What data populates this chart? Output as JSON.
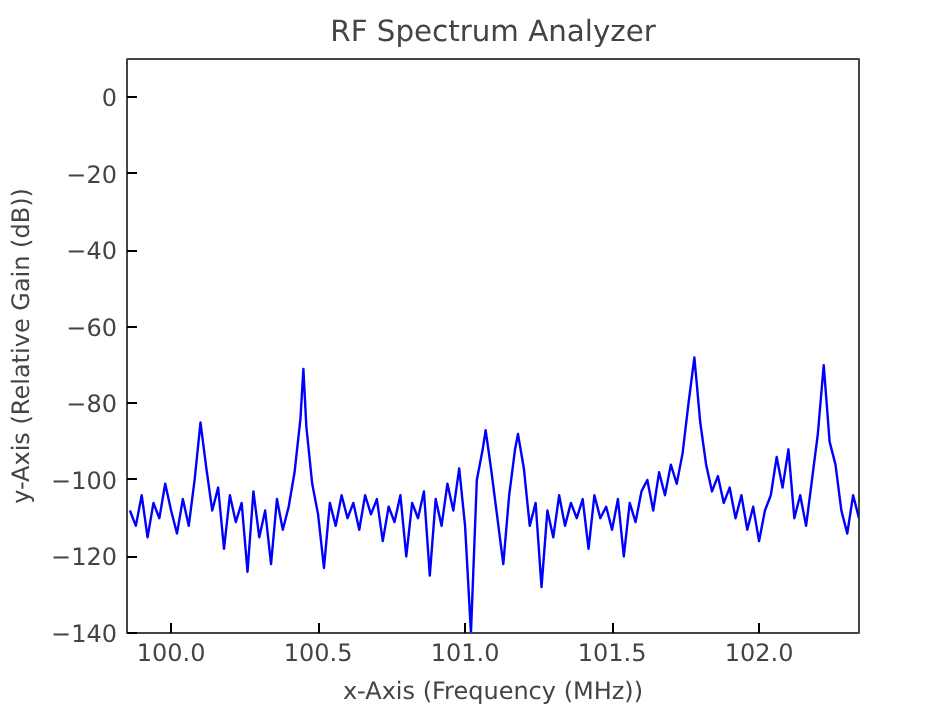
{
  "chart_data": {
    "type": "line",
    "title": "RF Spectrum Analyzer",
    "xlabel": "x-Axis (Frequency (MHz))",
    "ylabel": "y-Axis (Relative Gain (dB))",
    "xlim": [
      99.85,
      102.34
    ],
    "ylim": [
      -140,
      10
    ],
    "xticks": [
      {
        "value": 100.0,
        "label": "100.0"
      },
      {
        "value": 100.5,
        "label": "100.5"
      },
      {
        "value": 101.0,
        "label": "101.0"
      },
      {
        "value": 101.5,
        "label": "101.5"
      },
      {
        "value": 102.0,
        "label": "102.0"
      }
    ],
    "yticks": [
      {
        "value": -140,
        "label": "−140"
      },
      {
        "value": -120,
        "label": "−120"
      },
      {
        "value": -100,
        "label": "−100"
      },
      {
        "value": -80,
        "label": "−80"
      },
      {
        "value": -60,
        "label": "−60"
      },
      {
        "value": -40,
        "label": "−40"
      },
      {
        "value": -20,
        "label": "−20"
      },
      0
    ],
    "grid": false,
    "line_style": "solid",
    "series": [
      {
        "color": "#0000ff",
        "x": [
          99.86,
          99.88,
          99.9,
          99.92,
          99.94,
          99.96,
          99.98,
          100.0,
          100.02,
          100.04,
          100.06,
          100.08,
          100.1,
          100.12,
          100.14,
          100.16,
          100.18,
          100.2,
          100.22,
          100.24,
          100.26,
          100.28,
          100.3,
          100.32,
          100.34,
          100.36,
          100.38,
          100.4,
          100.42,
          100.44,
          100.45,
          100.46,
          100.48,
          100.5,
          100.52,
          100.54,
          100.56,
          100.58,
          100.6,
          100.62,
          100.64,
          100.66,
          100.68,
          100.7,
          100.72,
          100.74,
          100.76,
          100.78,
          100.8,
          100.82,
          100.84,
          100.86,
          100.88,
          100.9,
          100.92,
          100.94,
          100.96,
          100.98,
          101.0,
          101.02,
          101.04,
          101.06,
          101.07,
          101.09,
          101.11,
          101.13,
          101.15,
          101.17,
          101.18,
          101.2,
          101.22,
          101.24,
          101.26,
          101.28,
          101.3,
          101.32,
          101.34,
          101.36,
          101.38,
          101.4,
          101.42,
          101.44,
          101.46,
          101.48,
          101.5,
          101.52,
          101.54,
          101.56,
          101.58,
          101.6,
          101.62,
          101.64,
          101.66,
          101.68,
          101.7,
          101.72,
          101.74,
          101.76,
          101.78,
          101.8,
          101.82,
          101.84,
          101.86,
          101.88,
          101.9,
          101.92,
          101.94,
          101.96,
          101.98,
          102.0,
          102.02,
          102.04,
          102.06,
          102.08,
          102.1,
          102.12,
          102.14,
          102.16,
          102.18,
          102.2,
          102.22,
          102.24,
          102.26,
          102.28,
          102.3,
          102.32,
          102.34
        ],
        "values": [
          -108,
          -112,
          -104,
          -115,
          -106,
          -110,
          -101,
          -108,
          -114,
          -105,
          -112,
          -100,
          -85,
          -97,
          -108,
          -102,
          -118,
          -104,
          -111,
          -106,
          -124,
          -103,
          -115,
          -108,
          -122,
          -105,
          -113,
          -107,
          -98,
          -84,
          -71,
          -86,
          -101,
          -109,
          -123,
          -106,
          -112,
          -104,
          -110,
          -106,
          -113,
          -104,
          -109,
          -105,
          -116,
          -107,
          -111,
          -104,
          -120,
          -106,
          -110,
          -103,
          -125,
          -105,
          -112,
          -101,
          -108,
          -97,
          -112,
          -140,
          -100,
          -92,
          -87,
          -98,
          -110,
          -122,
          -104,
          -92,
          -88,
          -97,
          -112,
          -106,
          -128,
          -108,
          -115,
          -104,
          -112,
          -106,
          -110,
          -105,
          -118,
          -104,
          -110,
          -107,
          -113,
          -105,
          -120,
          -106,
          -111,
          -103,
          -100,
          -108,
          -98,
          -104,
          -96,
          -101,
          -93,
          -80,
          -68,
          -85,
          -96,
          -103,
          -99,
          -106,
          -102,
          -110,
          -104,
          -113,
          -107,
          -116,
          -108,
          -104,
          -94,
          -102,
          -92,
          -110,
          -104,
          -112,
          -100,
          -88,
          -70,
          -90,
          -96,
          -108,
          -114,
          -104,
          -110
        ]
      }
    ]
  }
}
